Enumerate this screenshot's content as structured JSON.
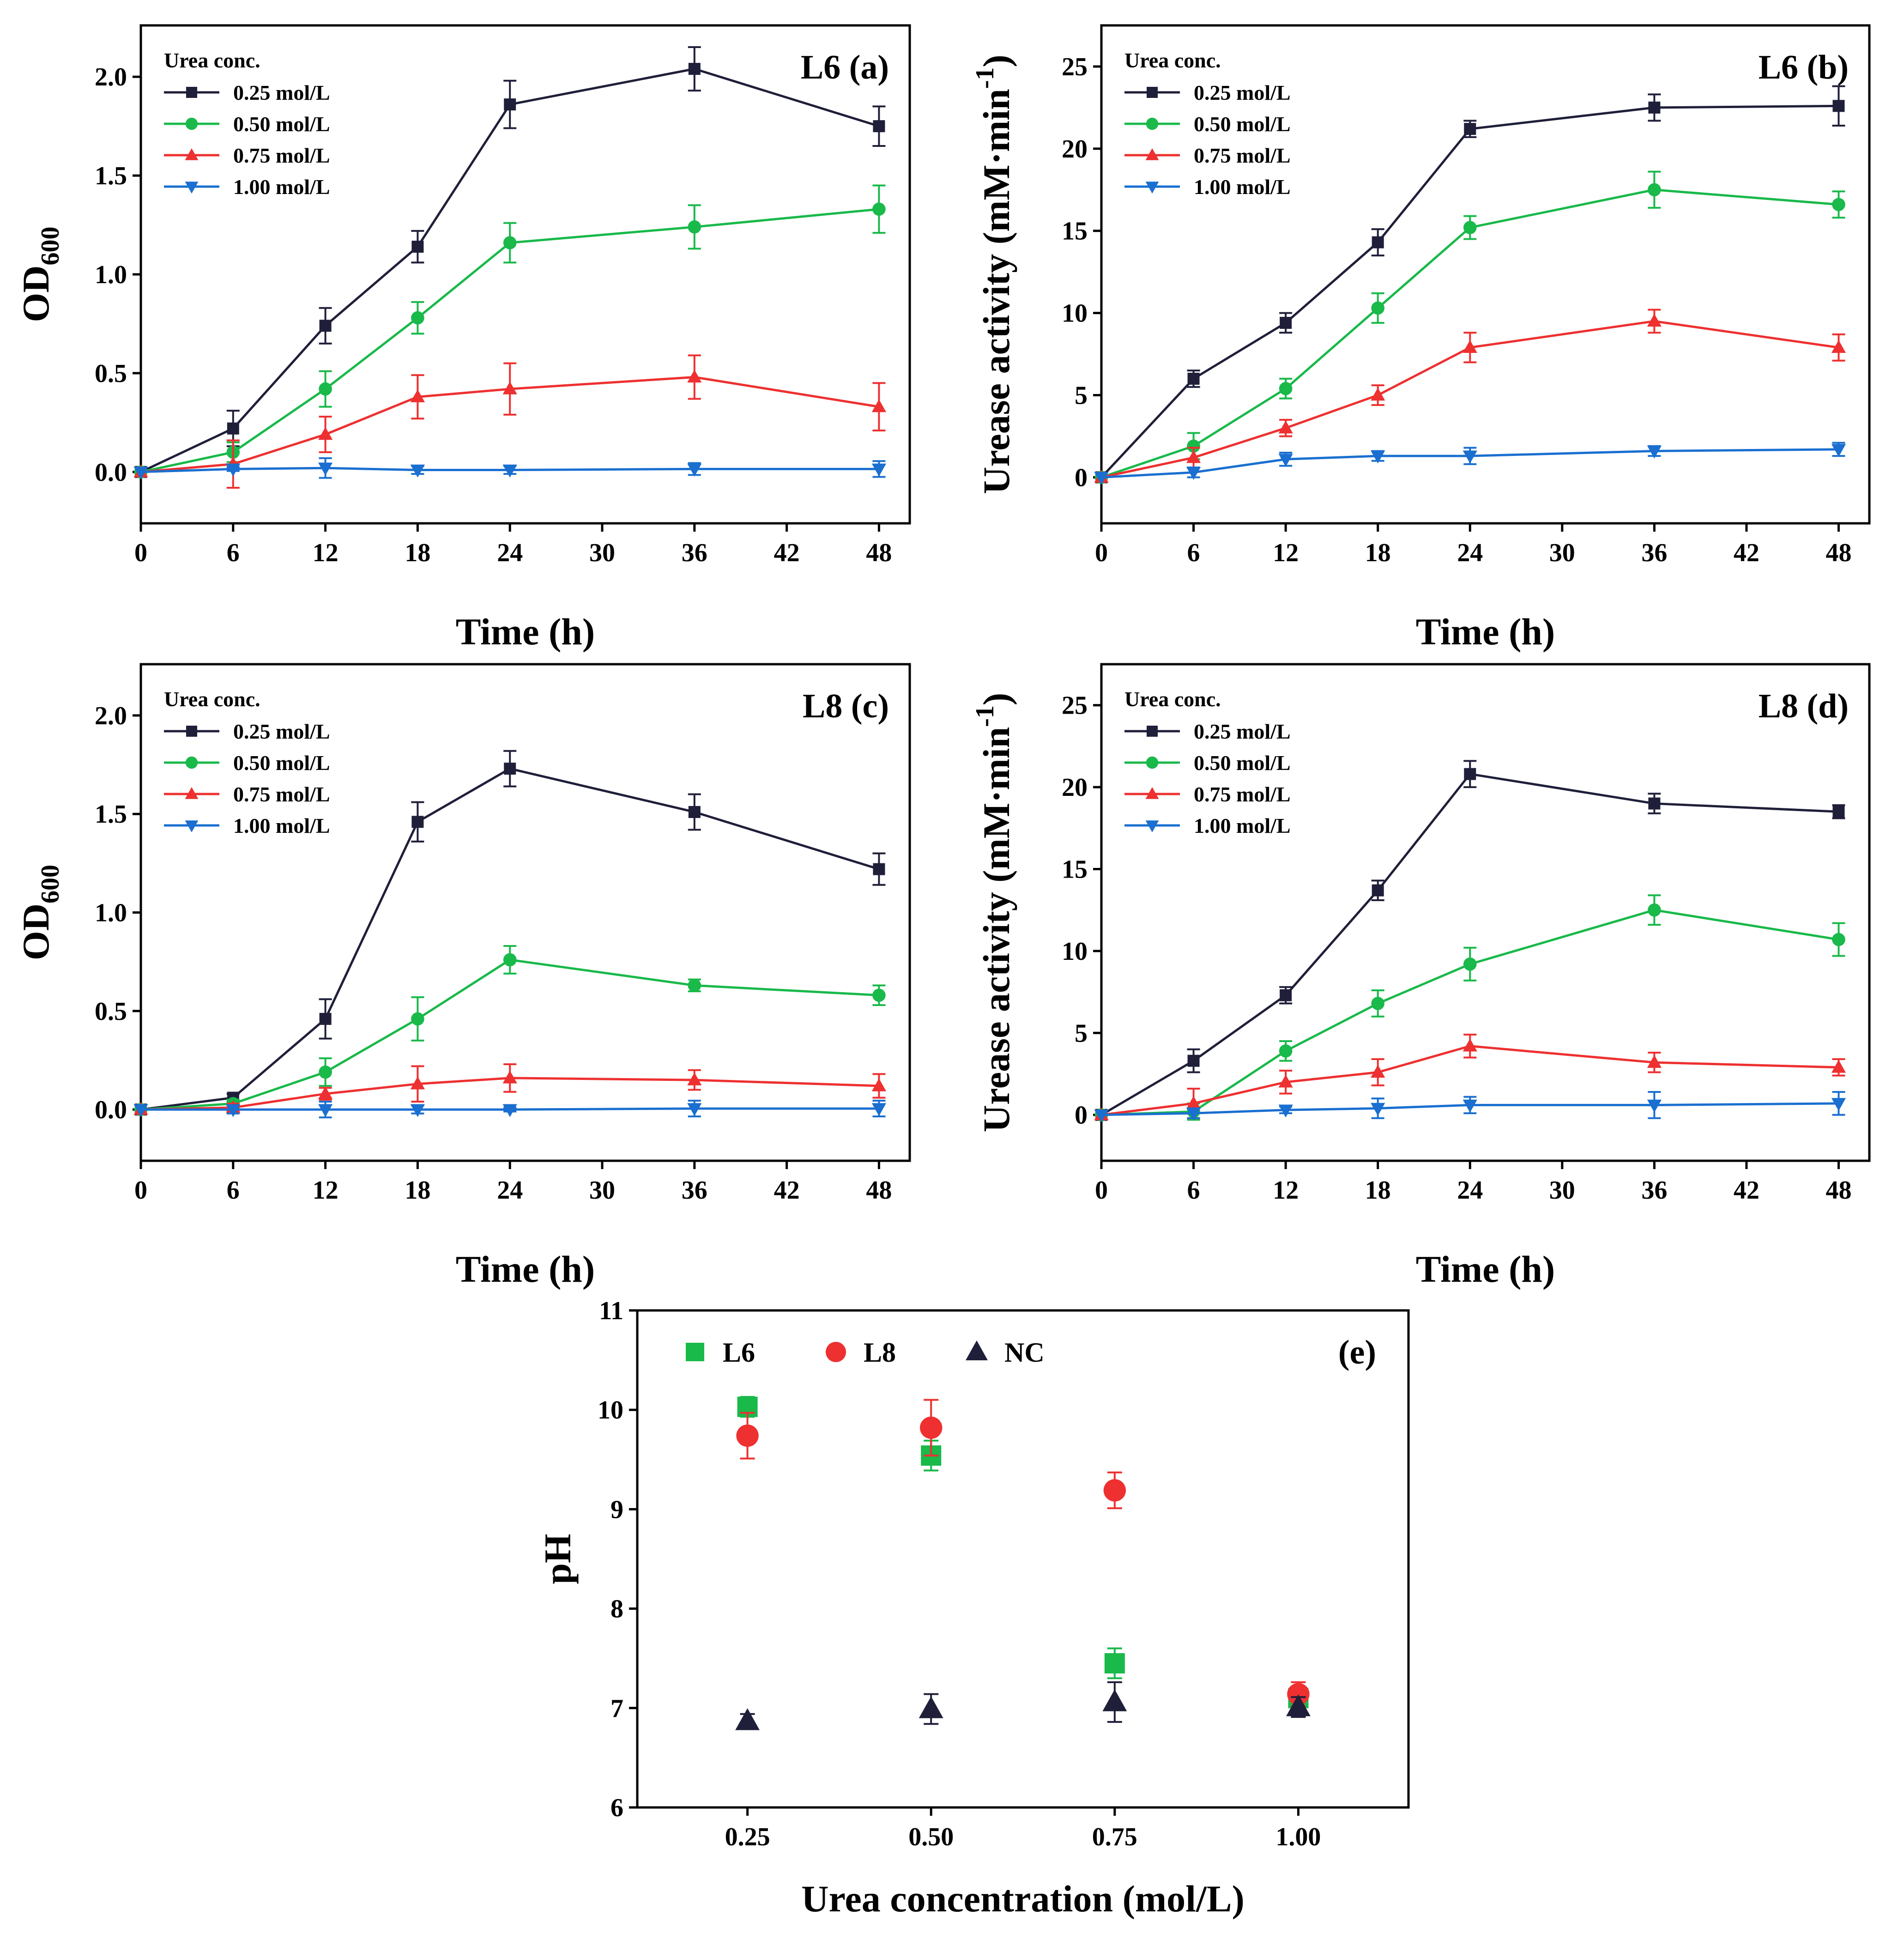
{
  "colors": {
    "c025": "#1f1f3a",
    "c050": "#19b94a",
    "c075": "#ee3030",
    "c100": "#1a6fd0",
    "L6": "#19b94a",
    "L8": "#ee3030",
    "NC": "#1f1f3a"
  },
  "chart_data": [
    {
      "id": "a",
      "type": "line",
      "strain_label": "L6",
      "panel_label": "(a)",
      "xlabel": "Time (h)",
      "ylabel_main": "OD",
      "ylabel_sub": "600",
      "legend_title": "Urea conc.",
      "x": [
        0,
        6,
        12,
        18,
        24,
        36,
        48
      ],
      "xlim": [
        0,
        50
      ],
      "ylim": [
        -0.26,
        2.26
      ],
      "xticks": [
        0,
        6,
        12,
        18,
        24,
        30,
        36,
        42,
        48
      ],
      "yticks": [
        0.0,
        0.5,
        1.0,
        1.5,
        2.0
      ],
      "ytick_labels": [
        "0.0",
        "0.5",
        "1.0",
        "1.5",
        "2.0"
      ],
      "series": [
        {
          "name": "0.25 mol/L",
          "marker": "square",
          "color_key": "c025",
          "values": [
            0,
            0.22,
            0.74,
            1.14,
            1.86,
            2.04,
            1.75
          ],
          "errors": [
            0,
            0.09,
            0.09,
            0.08,
            0.12,
            0.11,
            0.1
          ]
        },
        {
          "name": "0.50 mol/L",
          "marker": "circle",
          "color_key": "c050",
          "values": [
            0,
            0.1,
            0.42,
            0.78,
            1.16,
            1.24,
            1.33
          ],
          "errors": [
            0,
            0.05,
            0.09,
            0.08,
            0.1,
            0.11,
            0.12
          ]
        },
        {
          "name": "0.75 mol/L",
          "marker": "triangle-up",
          "color_key": "c075",
          "values": [
            0,
            0.04,
            0.19,
            0.38,
            0.42,
            0.48,
            0.33
          ],
          "errors": [
            0,
            0.12,
            0.09,
            0.11,
            0.13,
            0.11,
            0.12
          ]
        },
        {
          "name": "1.00 mol/L",
          "marker": "triangle-down",
          "color_key": "c100",
          "values": [
            0,
            0.015,
            0.02,
            0.01,
            0.01,
            0.015,
            0.015
          ],
          "errors": [
            0,
            0.01,
            0.05,
            0.02,
            0.02,
            0.03,
            0.04
          ]
        }
      ]
    },
    {
      "id": "b",
      "type": "line",
      "strain_label": "L6",
      "panel_label": "(b)",
      "xlabel": "Time (h)",
      "ylabel_main": "Urease activity (mM·min",
      "ylabel_sup": "-1",
      "ylabel_end": ")",
      "legend_title": "Urea conc.",
      "x": [
        0,
        6,
        12,
        18,
        24,
        36,
        48
      ],
      "xlim": [
        0,
        50
      ],
      "ylim": [
        -2.8,
        27.5
      ],
      "xticks": [
        0,
        6,
        12,
        18,
        24,
        30,
        36,
        42,
        48
      ],
      "yticks": [
        0,
        5,
        10,
        15,
        20,
        25
      ],
      "ytick_labels": [
        "0",
        "5",
        "10",
        "15",
        "20",
        "25"
      ],
      "series": [
        {
          "name": "0.25 mol/L",
          "marker": "square",
          "color_key": "c025",
          "values": [
            0,
            6.0,
            9.4,
            14.3,
            21.2,
            22.5,
            22.6
          ],
          "errors": [
            0,
            0.5,
            0.6,
            0.8,
            0.5,
            0.8,
            1.2
          ]
        },
        {
          "name": "0.50 mol/L",
          "marker": "circle",
          "color_key": "c050",
          "values": [
            0,
            1.9,
            5.4,
            10.3,
            15.2,
            17.5,
            16.6
          ],
          "errors": [
            0,
            0.8,
            0.6,
            0.9,
            0.7,
            1.1,
            0.8
          ]
        },
        {
          "name": "0.75 mol/L",
          "marker": "triangle-up",
          "color_key": "c075",
          "values": [
            0,
            1.2,
            3.0,
            5.0,
            7.9,
            9.5,
            7.9
          ],
          "errors": [
            0,
            0.6,
            0.5,
            0.6,
            0.9,
            0.7,
            0.8
          ]
        },
        {
          "name": "1.00 mol/L",
          "marker": "triangle-down",
          "color_key": "c100",
          "values": [
            0,
            0.3,
            1.1,
            1.3,
            1.3,
            1.6,
            1.7
          ],
          "errors": [
            0,
            0.3,
            0.4,
            0.3,
            0.5,
            0.3,
            0.4
          ]
        }
      ]
    },
    {
      "id": "c",
      "type": "line",
      "strain_label": "L8",
      "panel_label": "(c)",
      "xlabel": "Time (h)",
      "ylabel_main": "OD",
      "ylabel_sub": "600",
      "legend_title": "Urea conc.",
      "x": [
        0,
        6,
        12,
        18,
        24,
        36,
        48
      ],
      "xlim": [
        0,
        50
      ],
      "ylim": [
        -0.26,
        2.26
      ],
      "xticks": [
        0,
        6,
        12,
        18,
        24,
        30,
        36,
        42,
        48
      ],
      "yticks": [
        0.0,
        0.5,
        1.0,
        1.5,
        2.0
      ],
      "ytick_labels": [
        "0.0",
        "0.5",
        "1.0",
        "1.5",
        "2.0"
      ],
      "series": [
        {
          "name": "0.25 mol/L",
          "marker": "square",
          "color_key": "c025",
          "values": [
            0,
            0.06,
            0.46,
            1.46,
            1.73,
            1.51,
            1.22
          ],
          "errors": [
            0,
            0.02,
            0.1,
            0.1,
            0.09,
            0.09,
            0.08
          ]
        },
        {
          "name": "0.50 mol/L",
          "marker": "circle",
          "color_key": "c050",
          "values": [
            0,
            0.03,
            0.19,
            0.46,
            0.76,
            0.63,
            0.58
          ],
          "errors": [
            0,
            0.02,
            0.07,
            0.11,
            0.07,
            0.03,
            0.05
          ]
        },
        {
          "name": "0.75 mol/L",
          "marker": "triangle-up",
          "color_key": "c075",
          "values": [
            0,
            0.01,
            0.08,
            0.13,
            0.16,
            0.15,
            0.12
          ],
          "errors": [
            0,
            0.02,
            0.03,
            0.09,
            0.07,
            0.05,
            0.06
          ]
        },
        {
          "name": "1.00 mol/L",
          "marker": "triangle-down",
          "color_key": "c100",
          "values": [
            0,
            0.0,
            0.0,
            0.0,
            0.0,
            0.005,
            0.005
          ],
          "errors": [
            0,
            0.02,
            0.04,
            0.02,
            0.01,
            0.04,
            0.04
          ]
        }
      ]
    },
    {
      "id": "d",
      "type": "line",
      "strain_label": "L8",
      "panel_label": "(d)",
      "xlabel": "Time (h)",
      "ylabel_main": "Urease activity (mM·min",
      "ylabel_sup": "-1",
      "ylabel_end": ")",
      "legend_title": "Urea conc.",
      "x": [
        0,
        6,
        12,
        18,
        24,
        36,
        48
      ],
      "xlim": [
        0,
        50
      ],
      "ylim": [
        -2.8,
        27.5
      ],
      "xticks": [
        0,
        6,
        12,
        18,
        24,
        30,
        36,
        42,
        48
      ],
      "yticks": [
        0,
        5,
        10,
        15,
        20,
        25
      ],
      "ytick_labels": [
        "0",
        "5",
        "10",
        "15",
        "20",
        "25"
      ],
      "series": [
        {
          "name": "0.25 mol/L",
          "marker": "square",
          "color_key": "c025",
          "values": [
            0,
            3.3,
            7.3,
            13.7,
            20.8,
            19.0,
            18.5
          ],
          "errors": [
            0,
            0.7,
            0.5,
            0.6,
            0.8,
            0.6,
            0.4
          ]
        },
        {
          "name": "0.50 mol/L",
          "marker": "circle",
          "color_key": "c050",
          "values": [
            0,
            0.2,
            3.9,
            6.8,
            9.2,
            12.5,
            10.7
          ],
          "errors": [
            0,
            0.5,
            0.6,
            0.8,
            1.0,
            0.9,
            1.0
          ]
        },
        {
          "name": "0.75 mol/L",
          "marker": "triangle-up",
          "color_key": "c075",
          "values": [
            0,
            0.7,
            2.0,
            2.6,
            4.2,
            3.2,
            2.9
          ],
          "errors": [
            0,
            0.9,
            0.7,
            0.8,
            0.7,
            0.6,
            0.5
          ]
        },
        {
          "name": "1.00 mol/L",
          "marker": "triangle-down",
          "color_key": "c100",
          "values": [
            0,
            0.1,
            0.3,
            0.4,
            0.6,
            0.6,
            0.7
          ],
          "errors": [
            0,
            0.3,
            0.2,
            0.6,
            0.5,
            0.8,
            0.7
          ]
        }
      ]
    },
    {
      "id": "e",
      "type": "scatter",
      "panel_label": "(e)",
      "xlabel": "Urea concentration (mol/L)",
      "ylabel": "pH",
      "categories": [
        "0.25",
        "0.50",
        "0.75",
        "1.00"
      ],
      "xlim": [
        0.1,
        1.15
      ],
      "ylim": [
        6,
        11
      ],
      "yticks": [
        6,
        7,
        8,
        9,
        10,
        11
      ],
      "ytick_labels": [
        "6",
        "7",
        "8",
        "9",
        "10",
        "11"
      ],
      "series": [
        {
          "name": "L6",
          "marker": "square",
          "color_key": "L6",
          "values": [
            10.03,
            9.54,
            7.45,
            7.1
          ],
          "errors": [
            0.1,
            0.15,
            0.15,
            0.1
          ]
        },
        {
          "name": "L8",
          "marker": "circle",
          "color_key": "L8",
          "values": [
            9.74,
            9.82,
            9.19,
            7.14
          ],
          "errors": [
            0.23,
            0.28,
            0.18,
            0.12
          ]
        },
        {
          "name": "NC",
          "marker": "triangle-up",
          "color_key": "NC",
          "values": [
            6.87,
            6.99,
            7.06,
            7.01
          ],
          "errors": [
            0.07,
            0.15,
            0.2,
            0.1
          ]
        }
      ]
    }
  ]
}
